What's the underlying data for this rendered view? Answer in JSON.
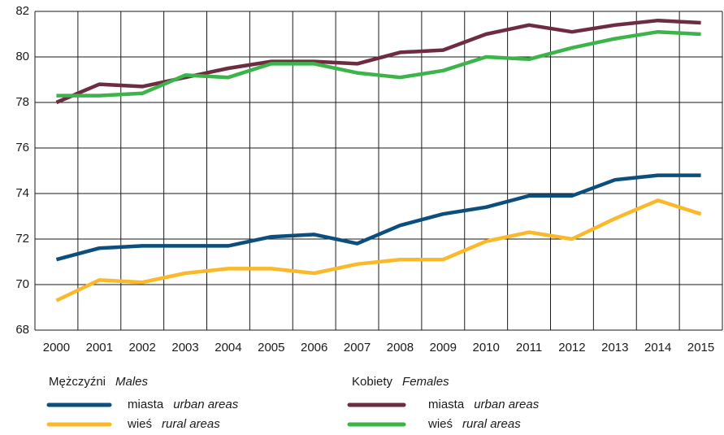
{
  "chart_data": {
    "type": "line",
    "categories": [
      "2000",
      "2001",
      "2002",
      "2003",
      "2004",
      "2005",
      "2006",
      "2007",
      "2008",
      "2009",
      "2010",
      "2011",
      "2012",
      "2013",
      "2014",
      "2015"
    ],
    "ylim": [
      68,
      82
    ],
    "yticks": [
      68,
      70,
      72,
      74,
      76,
      78,
      80,
      82
    ],
    "grid": true,
    "legend_groups": [
      {
        "title": "Mężczyźni",
        "title_en": "Males"
      },
      {
        "title": "Kobiety",
        "title_en": "Females"
      }
    ],
    "series": [
      {
        "name": "miasta",
        "name_en": "urban areas",
        "color": "#0d4f7c",
        "values": [
          71.1,
          71.6,
          71.7,
          71.7,
          71.7,
          72.1,
          72.2,
          71.8,
          72.6,
          73.1,
          73.4,
          73.9,
          73.9,
          74.6,
          74.8,
          74.8
        ]
      },
      {
        "name": "wieś",
        "name_en": "rural areas",
        "color": "#fbb829",
        "values": [
          69.3,
          70.2,
          70.1,
          70.5,
          70.7,
          70.7,
          70.5,
          70.9,
          71.1,
          71.1,
          71.9,
          72.3,
          72.0,
          72.9,
          73.7,
          73.1
        ]
      },
      {
        "name": "miasta",
        "name_en": "urban areas",
        "color": "#6e2c40",
        "values": [
          78.0,
          78.8,
          78.7,
          79.1,
          79.5,
          79.8,
          79.8,
          79.7,
          80.2,
          80.3,
          81.0,
          81.4,
          81.1,
          81.4,
          81.6,
          81.5
        ]
      },
      {
        "name": "wieś",
        "name_en": "rural areas",
        "color": "#3cb44a",
        "values": [
          78.3,
          78.3,
          78.4,
          79.2,
          79.1,
          79.7,
          79.7,
          79.3,
          79.1,
          79.4,
          80.0,
          79.9,
          80.4,
          80.8,
          81.1,
          81.0
        ]
      }
    ]
  }
}
